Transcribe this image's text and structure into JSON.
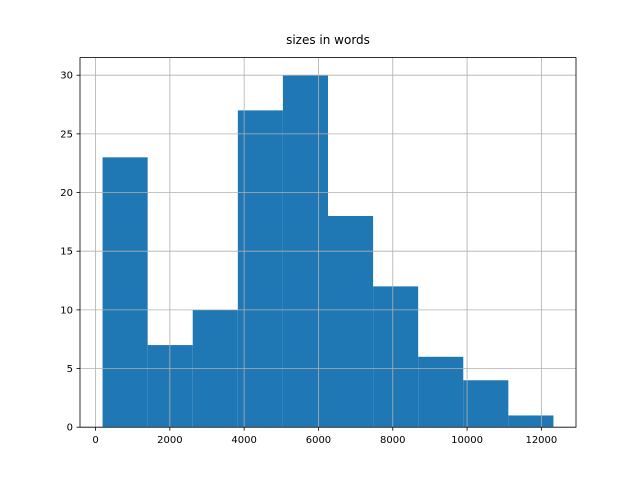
{
  "chart_data": {
    "type": "histogram",
    "title": "sizes in words",
    "bins": [
      189,
      1403,
      2616,
      3830,
      5043,
      6257,
      7471,
      8684,
      9898,
      11111,
      12325
    ],
    "counts": [
      23,
      7,
      10,
      27,
      30,
      18,
      12,
      6,
      4,
      1
    ],
    "color": "#1f77b4",
    "xlim": [
      -418,
      12932
    ],
    "xticks": [
      0,
      2000,
      4000,
      6000,
      8000,
      10000,
      12000
    ],
    "ylim": [
      0,
      31.5
    ],
    "yticks": [
      0,
      5,
      10,
      15,
      20,
      25,
      30
    ],
    "grid": true
  }
}
